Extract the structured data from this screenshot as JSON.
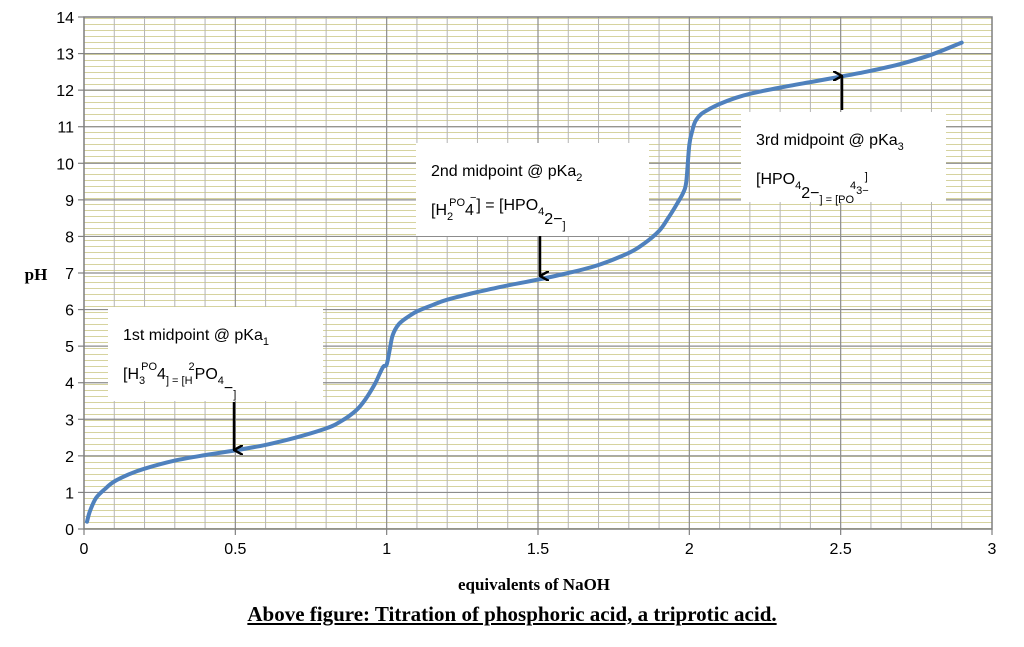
{
  "chart_data": {
    "type": "line",
    "xlabel": "equivalents of NaOH",
    "ylabel": "pH",
    "xlim": [
      0,
      3
    ],
    "ylim": [
      0,
      14
    ],
    "xticks": [
      "0",
      "0.5",
      "1",
      "1.5",
      "2",
      "2.5",
      "3"
    ],
    "yticks": [
      "0",
      "1",
      "2",
      "3",
      "4",
      "5",
      "6",
      "7",
      "8",
      "9",
      "10",
      "11",
      "12",
      "13",
      "14"
    ],
    "grid": true,
    "series": [
      {
        "color": "#4F81BD",
        "x": [
          0.01,
          0.02,
          0.04,
          0.07,
          0.1,
          0.15,
          0.2,
          0.3,
          0.4,
          0.5,
          0.6,
          0.7,
          0.8,
          0.85,
          0.9,
          0.93,
          0.96,
          0.98,
          0.99,
          1.0,
          1.01,
          1.02,
          1.04,
          1.07,
          1.1,
          1.15,
          1.2,
          1.3,
          1.4,
          1.5,
          1.6,
          1.7,
          1.8,
          1.85,
          1.9,
          1.93,
          1.96,
          1.98,
          1.99,
          2.0,
          2.01,
          2.02,
          2.04,
          2.07,
          2.1,
          2.15,
          2.2,
          2.3,
          2.4,
          2.5,
          2.6,
          2.7,
          2.8,
          2.9
        ],
        "y": [
          0.2,
          0.5,
          0.85,
          1.1,
          1.3,
          1.5,
          1.65,
          1.87,
          2.02,
          2.15,
          2.3,
          2.5,
          2.75,
          2.95,
          3.25,
          3.55,
          3.95,
          4.3,
          4.45,
          4.5,
          4.9,
          5.3,
          5.6,
          5.8,
          5.95,
          6.12,
          6.27,
          6.48,
          6.66,
          6.82,
          7.0,
          7.22,
          7.55,
          7.8,
          8.15,
          8.5,
          8.9,
          9.2,
          9.5,
          10.5,
          10.9,
          11.15,
          11.35,
          11.5,
          11.62,
          11.78,
          11.9,
          12.07,
          12.22,
          12.37,
          12.53,
          12.72,
          12.97,
          13.3
        ]
      }
    ],
    "annotations": [
      {
        "line1": "1st midpoint @ pKa",
        "line1_sub": "1",
        "line2_parts": [
          "[H",
          "3",
          "PO",
          "4",
          "] = [H",
          "2",
          "PO",
          "4",
          "",
          "−",
          "]"
        ],
        "point": [
          0.5,
          2.15
        ]
      },
      {
        "line1": "2nd midpoint @ pKa",
        "line1_sub": "2",
        "line2_parts": [
          "[H",
          "2",
          "PO",
          "4",
          "",
          "−",
          "] = [HPO",
          "4",
          "",
          "2−",
          "]"
        ],
        "point": [
          1.5,
          6.82
        ]
      },
      {
        "line1": "3rd midpoint @ pKa",
        "line1_sub": "3",
        "line2_parts": [
          "[HPO",
          "4",
          "",
          "2−",
          "] = [PO",
          "4",
          "",
          "3−",
          "]"
        ],
        "point": [
          2.5,
          12.37
        ]
      }
    ]
  },
  "caption": "Above figure: Titration of phosphoric acid, a triprotic acid."
}
